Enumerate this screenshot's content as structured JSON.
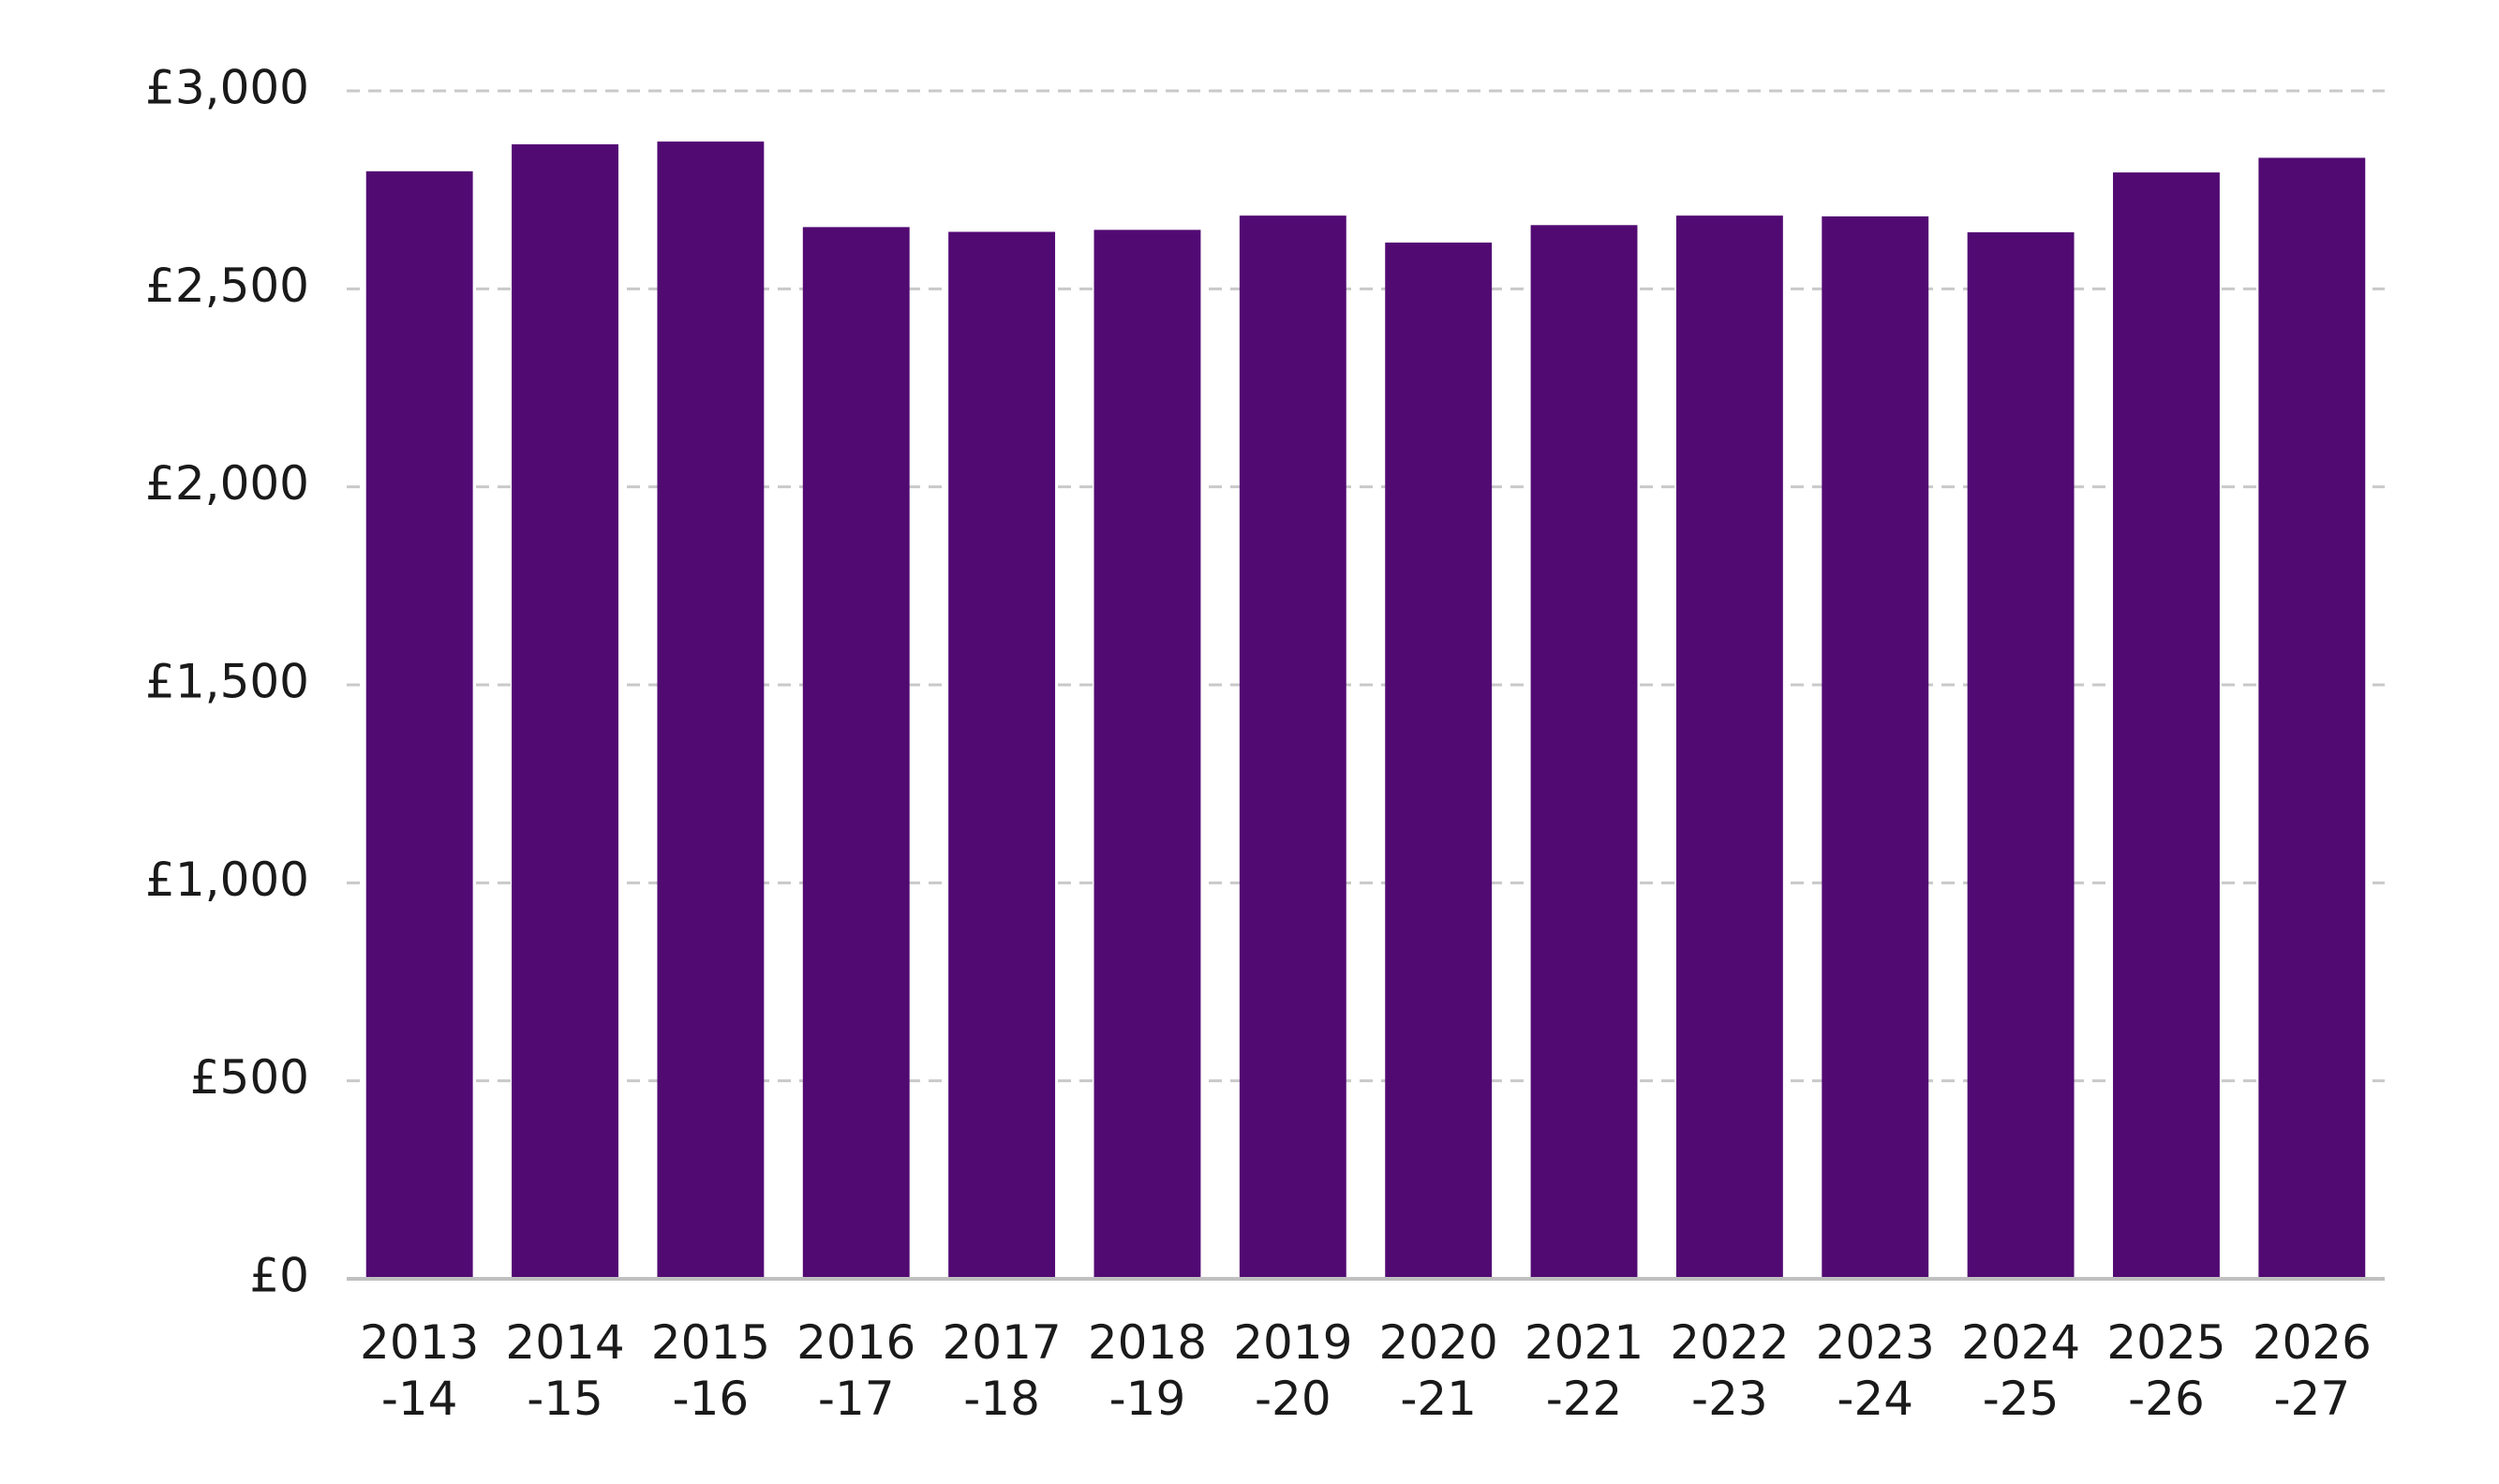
{
  "chart_data": {
    "type": "bar",
    "categories": [
      [
        "2013",
        "-14"
      ],
      [
        "2014",
        "-15"
      ],
      [
        "2015",
        "-16"
      ],
      [
        "2016",
        "-17"
      ],
      [
        "2017",
        "-18"
      ],
      [
        "2018",
        "-19"
      ],
      [
        "2019",
        "-20"
      ],
      [
        "2020",
        "-21"
      ],
      [
        "2021",
        "-22"
      ],
      [
        "2022",
        "-23"
      ],
      [
        "2023",
        "-24"
      ],
      [
        "2024",
        "-25"
      ],
      [
        "2025",
        "-26"
      ],
      [
        "2026",
        "-27"
      ]
    ],
    "values": [
      2797,
      2865,
      2872,
      2656,
      2644,
      2649,
      2685,
      2617,
      2661,
      2685,
      2683,
      2643,
      2794,
      2831
    ],
    "title": "",
    "xlabel": "",
    "ylabel": "",
    "ylim": [
      0,
      3000
    ],
    "yticks": [
      0,
      500,
      1000,
      1500,
      2000,
      2500,
      3000
    ],
    "ytick_labels": [
      "£0",
      "£500",
      "£1,000",
      "£1,500",
      "£2,000",
      "£2,500",
      "£3,000"
    ],
    "grid": true,
    "grid_style": "dashed",
    "legend": "none",
    "bar_color": "#520a73"
  }
}
